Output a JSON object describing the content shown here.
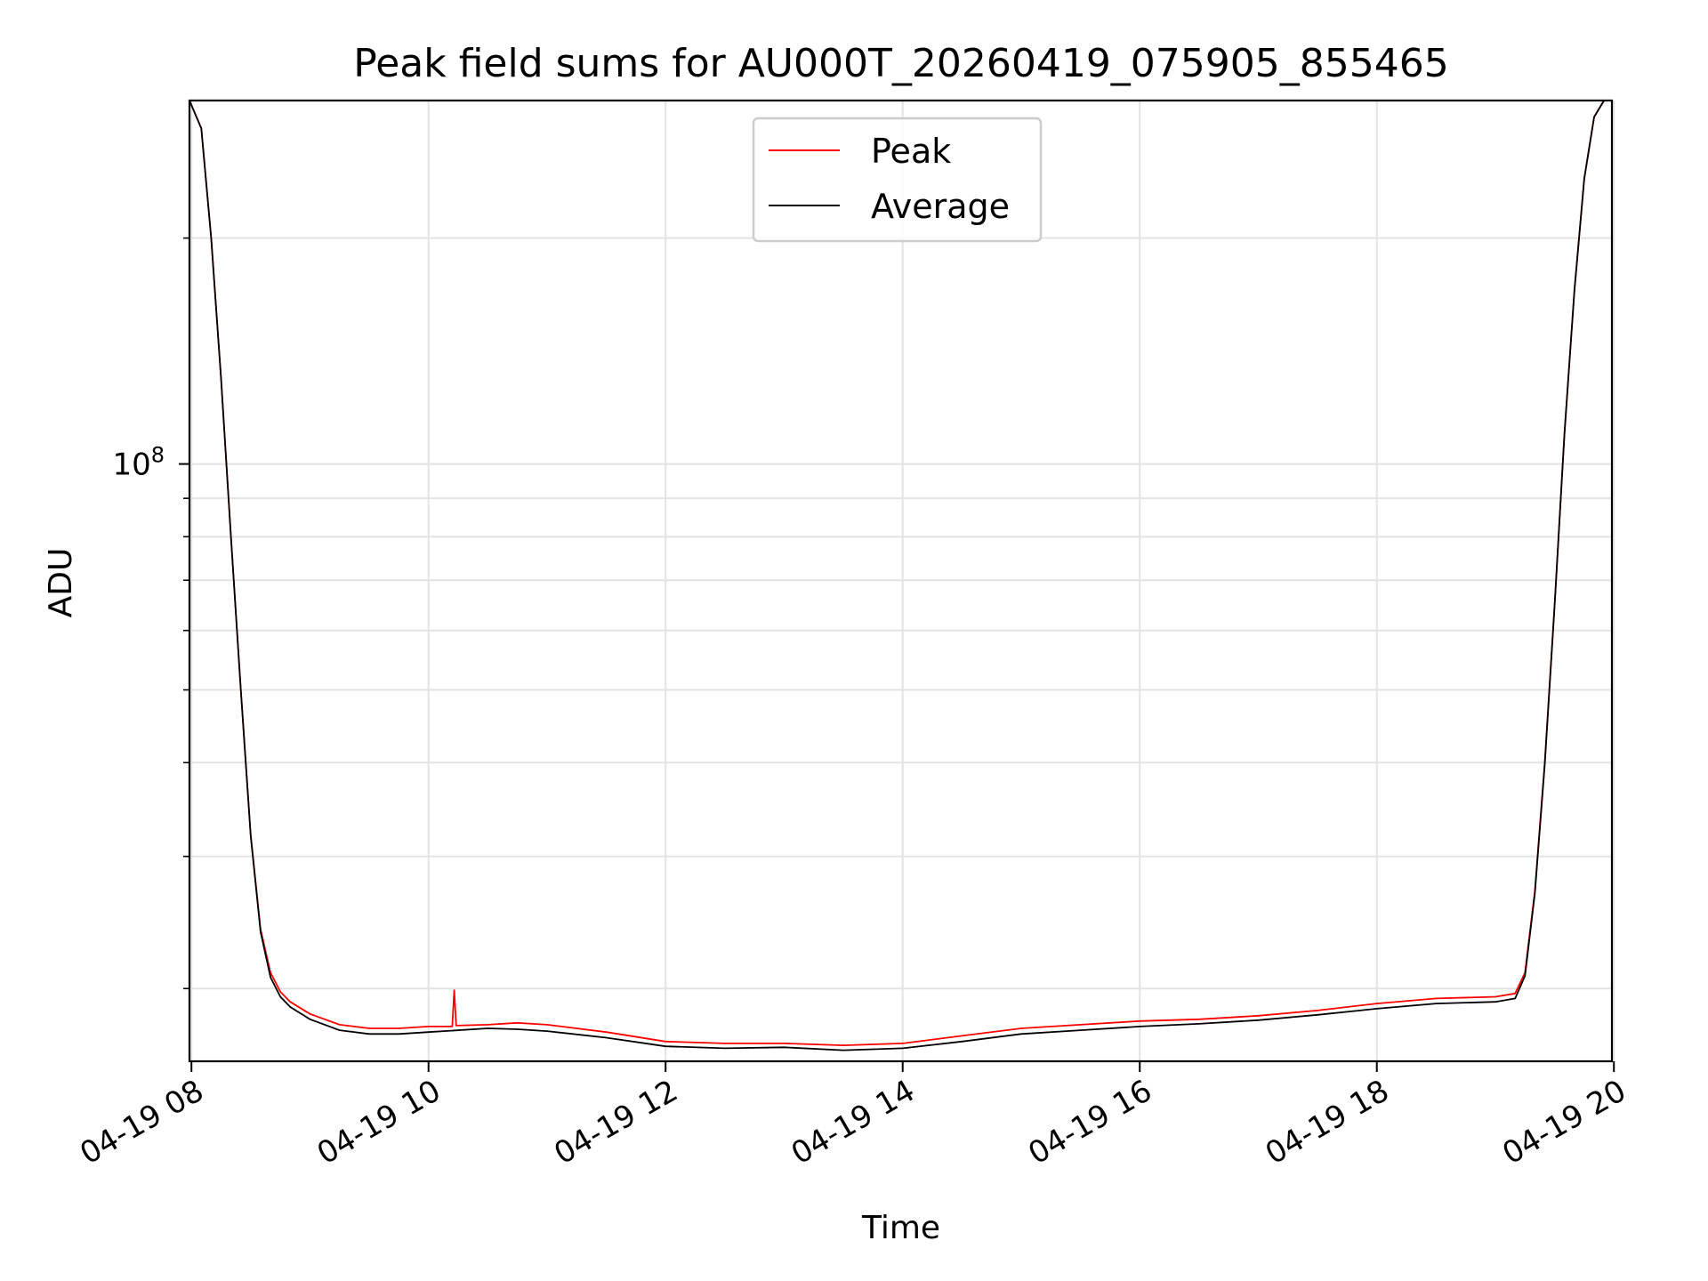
{
  "chart_data": {
    "type": "line",
    "title": "Peak field sums for AU000T_20260419_075905_855465",
    "xlabel": "Time",
    "ylabel": "ADU",
    "x_axis_type": "datetime",
    "xlim": [
      "2026-04-19 07:59",
      "2026-04-19 19:59"
    ],
    "y_scale": "log",
    "ylim": [
      16000000,
      305000000
    ],
    "x_ticks": [
      "2026-04-19 08:00",
      "2026-04-19 10:00",
      "2026-04-19 12:00",
      "2026-04-19 14:00",
      "2026-04-19 16:00",
      "2026-04-19 18:00",
      "2026-04-19 20:00"
    ],
    "x_tick_labels": [
      "04-19 08",
      "04-19 10",
      "04-19 12",
      "04-19 14",
      "04-19 16",
      "04-19 18",
      "04-19 20"
    ],
    "y_major_ticks": [
      100000000
    ],
    "y_major_tick_labels": [
      "10^8"
    ],
    "y_minor_ticks": [
      20000000,
      30000000,
      40000000,
      50000000,
      60000000,
      70000000,
      80000000,
      90000000,
      200000000
    ],
    "grid": true,
    "legend": {
      "position": "upper-center",
      "entries": [
        "Peak",
        "Average"
      ]
    },
    "series": [
      {
        "name": "Peak",
        "color": "#ff0000",
        "x": [
          "2026-04-19 07:59",
          "2026-04-19 08:05",
          "2026-04-19 08:10",
          "2026-04-19 08:15",
          "2026-04-19 08:20",
          "2026-04-19 08:25",
          "2026-04-19 08:30",
          "2026-04-19 08:35",
          "2026-04-19 08:40",
          "2026-04-19 08:45",
          "2026-04-19 08:50",
          "2026-04-19 09:00",
          "2026-04-19 09:15",
          "2026-04-19 09:30",
          "2026-04-19 09:45",
          "2026-04-19 10:00",
          "2026-04-19 10:12",
          "2026-04-19 10:13",
          "2026-04-19 10:14",
          "2026-04-19 10:30",
          "2026-04-19 10:45",
          "2026-04-19 11:00",
          "2026-04-19 11:30",
          "2026-04-19 12:00",
          "2026-04-19 12:30",
          "2026-04-19 13:00",
          "2026-04-19 13:30",
          "2026-04-19 14:00",
          "2026-04-19 14:30",
          "2026-04-19 15:00",
          "2026-04-19 15:30",
          "2026-04-19 16:00",
          "2026-04-19 16:30",
          "2026-04-19 17:00",
          "2026-04-19 17:30",
          "2026-04-19 18:00",
          "2026-04-19 18:30",
          "2026-04-19 19:00",
          "2026-04-19 19:10",
          "2026-04-19 19:15",
          "2026-04-19 19:20",
          "2026-04-19 19:25",
          "2026-04-19 19:30",
          "2026-04-19 19:35",
          "2026-04-19 19:40",
          "2026-04-19 19:45",
          "2026-04-19 19:50",
          "2026-04-19 19:55",
          "2026-04-19 19:59"
        ],
        "y": [
          305000000,
          280000000,
          200000000,
          130000000,
          80000000,
          50000000,
          32000000,
          24000000,
          21000000,
          19800000,
          19200000,
          18500000,
          17900000,
          17700000,
          17700000,
          17800000,
          17800000,
          19900000,
          17850000,
          17900000,
          18000000,
          17900000,
          17500000,
          17000000,
          16900000,
          16900000,
          16800000,
          16900000,
          17300000,
          17700000,
          17900000,
          18100000,
          18200000,
          18400000,
          18700000,
          19100000,
          19400000,
          19500000,
          19700000,
          21000000,
          27000000,
          40000000,
          65000000,
          110000000,
          170000000,
          240000000,
          290000000,
          305000000,
          305000000
        ]
      },
      {
        "name": "Average",
        "color": "#000000",
        "x": [
          "2026-04-19 07:59",
          "2026-04-19 08:05",
          "2026-04-19 08:10",
          "2026-04-19 08:15",
          "2026-04-19 08:20",
          "2026-04-19 08:25",
          "2026-04-19 08:30",
          "2026-04-19 08:35",
          "2026-04-19 08:40",
          "2026-04-19 08:45",
          "2026-04-19 08:50",
          "2026-04-19 09:00",
          "2026-04-19 09:15",
          "2026-04-19 09:30",
          "2026-04-19 09:45",
          "2026-04-19 10:00",
          "2026-04-19 10:30",
          "2026-04-19 10:45",
          "2026-04-19 11:00",
          "2026-04-19 11:30",
          "2026-04-19 12:00",
          "2026-04-19 12:30",
          "2026-04-19 13:00",
          "2026-04-19 13:30",
          "2026-04-19 14:00",
          "2026-04-19 14:30",
          "2026-04-19 15:00",
          "2026-04-19 15:30",
          "2026-04-19 16:00",
          "2026-04-19 16:30",
          "2026-04-19 17:00",
          "2026-04-19 17:30",
          "2026-04-19 18:00",
          "2026-04-19 18:30",
          "2026-04-19 19:00",
          "2026-04-19 19:10",
          "2026-04-19 19:15",
          "2026-04-19 19:20",
          "2026-04-19 19:25",
          "2026-04-19 19:30",
          "2026-04-19 19:35",
          "2026-04-19 19:40",
          "2026-04-19 19:45",
          "2026-04-19 19:50",
          "2026-04-19 19:55",
          "2026-04-19 19:59"
        ],
        "y": [
          305000000,
          280000000,
          200000000,
          130000000,
          80000000,
          50000000,
          32000000,
          23800000,
          20700000,
          19500000,
          18900000,
          18200000,
          17600000,
          17400000,
          17400000,
          17500000,
          17700000,
          17650000,
          17550000,
          17200000,
          16750000,
          16650000,
          16700000,
          16550000,
          16650000,
          17000000,
          17400000,
          17600000,
          17800000,
          17950000,
          18150000,
          18450000,
          18800000,
          19100000,
          19200000,
          19400000,
          20800000,
          26800000,
          39800000,
          64800000,
          110000000,
          170000000,
          240000000,
          290000000,
          305000000,
          305000000
        ]
      }
    ]
  }
}
